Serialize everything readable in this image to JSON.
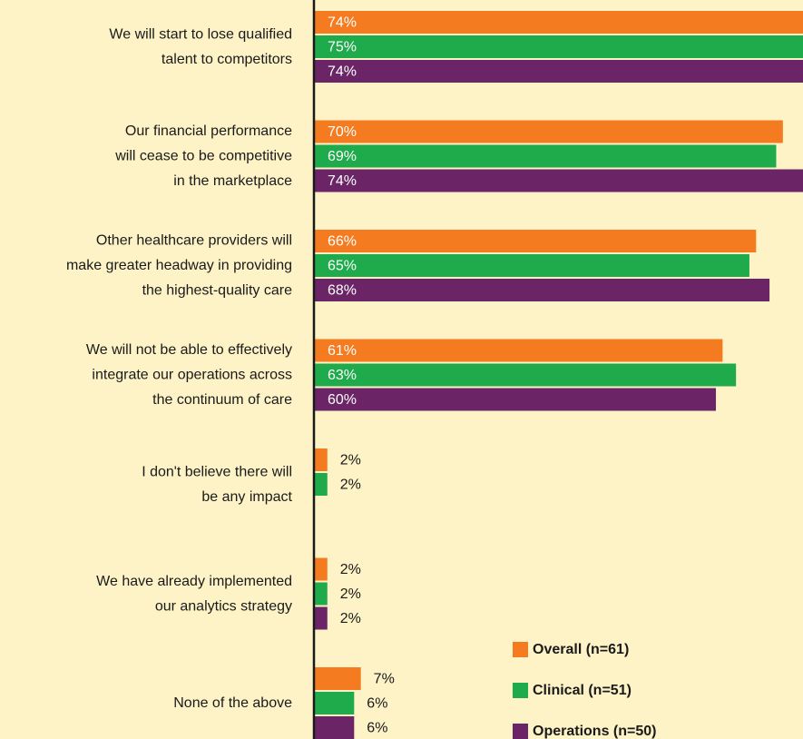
{
  "chart_data": {
    "type": "hbar",
    "categories": [
      [
        "We will start to lose qualified",
        "talent to competitors"
      ],
      [
        "Our financial performance",
        "will cease to be competitive",
        "in the marketplace"
      ],
      [
        "Other healthcare providers will",
        "make greater headway in providing",
        "the highest-quality care"
      ],
      [
        "We will not be able to effectively",
        "integrate our operations across",
        "the continuum of care"
      ],
      [
        "I don't believe there will",
        "be any impact"
      ],
      [
        "We have already implemented",
        "our analytics strategy"
      ],
      [
        "None of the above"
      ]
    ],
    "series": [
      {
        "name": "Overall (n=61)",
        "color": "#f47b20",
        "values": [
          74,
          70,
          66,
          61,
          2,
          2,
          7
        ],
        "value_labels": [
          "74%",
          "70%",
          "66%",
          "61%",
          "2%",
          "2%",
          "7%"
        ]
      },
      {
        "name": "Clinical (n=51)",
        "color": "#1faa4b",
        "values": [
          75,
          69,
          65,
          63,
          2,
          2,
          6
        ],
        "value_labels": [
          "75%",
          "69%",
          "65%",
          "63%",
          "2%",
          "2%",
          "6%"
        ]
      },
      {
        "name": "Operations (n=50)",
        "color": "#6b2466",
        "values": [
          74,
          74,
          68,
          60,
          null,
          2,
          6
        ],
        "value_labels": [
          "74%",
          "74%",
          "68%",
          "60%",
          null,
          "2%",
          "6%"
        ]
      }
    ],
    "xlim": [
      0,
      73
    ]
  }
}
